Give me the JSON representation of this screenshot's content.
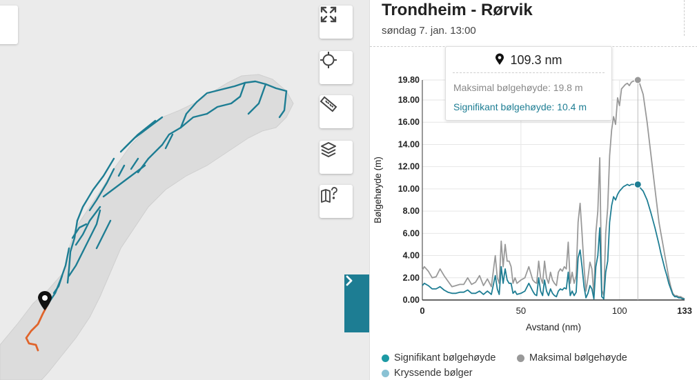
{
  "map": {
    "controls": [
      {
        "name": "fullscreen-button",
        "icon": "expand-icon"
      },
      {
        "name": "locate-button",
        "icon": "crosshair-icon"
      },
      {
        "name": "measure-button",
        "icon": "ruler-icon"
      },
      {
        "name": "layers-button",
        "icon": "layers-icon"
      },
      {
        "name": "map-help-button",
        "icon": "map-help-icon"
      }
    ],
    "colors": {
      "land": "#dcdcdc",
      "sea": "#ebebeb",
      "route_network": "#1d7d93",
      "selected_route": "#e0642b",
      "marker": "#111111"
    }
  },
  "panel": {
    "title": "Trondheim - Rørvik",
    "subtitle": "søndag 7. jan. 13:00",
    "toggle_icon": "chevron-right-icon"
  },
  "tooltip": {
    "distance": "109.3 nm",
    "max_label": "Maksimal bølgehøyde: 19.8 m",
    "sig_label": "Signifikant bølgehøyde: 10.4 m"
  },
  "chart_data": {
    "type": "line",
    "xlabel": "Avstand (nm)",
    "ylabel": "Bølgehøyde (m)",
    "xlim": [
      0,
      133
    ],
    "ylim": [
      0,
      19.8
    ],
    "x_ticks": [
      0,
      50,
      100,
      133
    ],
    "x_tick_labels": [
      "0",
      "50",
      "100",
      "133"
    ],
    "y_ticks": [
      0,
      2,
      4,
      6,
      8,
      10,
      12,
      14,
      16,
      18,
      19.8
    ],
    "y_tick_labels": [
      "0.00",
      "2.00",
      "4.00",
      "6.00",
      "8.00",
      "10.00",
      "12.00",
      "14.00",
      "16.00",
      "18.00",
      "19.80"
    ],
    "cursor_x": 109.3,
    "series": [
      {
        "name": "Maksimal bølgehøyde",
        "color": "#999999",
        "x": [
          0,
          1,
          3,
          5,
          7,
          9,
          11,
          13,
          15,
          17,
          19,
          21,
          23,
          25,
          27,
          29,
          31,
          33,
          35,
          37,
          38,
          39,
          40,
          41,
          42,
          43,
          44,
          45,
          46,
          47,
          48,
          50,
          52,
          54,
          56,
          57,
          58,
          59,
          60,
          61,
          62,
          63,
          64,
          65,
          66,
          67,
          68,
          69,
          70,
          71,
          72,
          73,
          74,
          75,
          76,
          77,
          78,
          79,
          80,
          81,
          82,
          83,
          84,
          85,
          86,
          87,
          88,
          89,
          90,
          91,
          92,
          93,
          94,
          95,
          96,
          97,
          98,
          99,
          100,
          101,
          102,
          103,
          104,
          105,
          106,
          107,
          108,
          109.3,
          110,
          112,
          114,
          116,
          118,
          120,
          121,
          122,
          123,
          124,
          125,
          126,
          127,
          128,
          129,
          130,
          131,
          132,
          133
        ],
        "y": [
          2.7,
          3.0,
          2.6,
          2.0,
          2.1,
          2.8,
          2.2,
          1.7,
          1.2,
          1.3,
          1.4,
          1.4,
          2.0,
          1.4,
          1.6,
          2.2,
          1.3,
          1.9,
          1.2,
          4.0,
          2.0,
          1.5,
          5.3,
          3.0,
          5.0,
          3.5,
          3.5,
          3.0,
          1.5,
          2.0,
          1.5,
          1.8,
          2.0,
          3.0,
          1.8,
          1.6,
          1.5,
          3.5,
          2.0,
          1.5,
          3.5,
          2.0,
          1.5,
          2.5,
          1.8,
          1.5,
          1.3,
          2.5,
          2.8,
          2.6,
          3.0,
          2.8,
          5.2,
          1.5,
          2.5,
          1.5,
          2.2,
          7.0,
          8.7,
          6.0,
          3.0,
          0.8,
          2.0,
          3.4,
          2.8,
          0.4,
          6.0,
          8.0,
          12.8,
          0.9,
          0.4,
          6.0,
          8.3,
          13.0,
          15.3,
          16.5,
          15.8,
          18.2,
          17.5,
          19.0,
          19.2,
          19.4,
          19.5,
          19.3,
          19.6,
          19.7,
          19.7,
          19.8,
          19.6,
          18.5,
          16.0,
          13.0,
          10.0,
          7.0,
          6.0,
          5.0,
          4.0,
          3.0,
          2.0,
          1.2,
          0.6,
          0.4,
          0.4,
          0.3,
          0.3,
          0.2,
          0.1
        ]
      },
      {
        "name": "Signifikant bølgehøyde",
        "color": "#1d7d93",
        "x": [
          0,
          1,
          3,
          5,
          7,
          9,
          11,
          13,
          15,
          17,
          19,
          21,
          23,
          25,
          27,
          29,
          31,
          33,
          35,
          37,
          38,
          39,
          40,
          41,
          42,
          43,
          44,
          45,
          46,
          47,
          48,
          50,
          52,
          54,
          56,
          57,
          58,
          59,
          60,
          61,
          62,
          63,
          64,
          65,
          66,
          67,
          68,
          69,
          70,
          71,
          72,
          73,
          74,
          75,
          76,
          77,
          78,
          79,
          80,
          81,
          82,
          83,
          84,
          85,
          86,
          87,
          88,
          89,
          90,
          91,
          92,
          93,
          94,
          95,
          96,
          97,
          98,
          99,
          100,
          101,
          102,
          103,
          104,
          105,
          106,
          107,
          108,
          109.3,
          110,
          112,
          114,
          116,
          118,
          120,
          121,
          122,
          123,
          124,
          125,
          126,
          127,
          128,
          129,
          130,
          131,
          132,
          133
        ],
        "y": [
          1.3,
          1.5,
          1.3,
          1.0,
          1.0,
          1.2,
          0.9,
          0.7,
          0.6,
          0.6,
          0.7,
          0.7,
          0.9,
          0.6,
          0.6,
          0.8,
          0.5,
          0.8,
          0.5,
          2.2,
          1.0,
          0.5,
          3.0,
          1.5,
          2.8,
          1.8,
          1.5,
          1.5,
          0.6,
          0.8,
          0.5,
          0.6,
          0.8,
          1.5,
          0.8,
          0.5,
          0.4,
          2.0,
          0.8,
          0.4,
          1.8,
          0.8,
          0.4,
          1.0,
          0.6,
          0.4,
          0.3,
          0.8,
          1.0,
          0.9,
          1.1,
          1.0,
          2.5,
          0.4,
          0.8,
          0.4,
          0.7,
          3.8,
          4.5,
          3.0,
          1.2,
          0.2,
          0.6,
          1.3,
          1.0,
          0.1,
          3.0,
          4.0,
          6.5,
          0.3,
          0.1,
          2.5,
          3.5,
          7.0,
          8.5,
          9.3,
          9.0,
          9.5,
          9.8,
          10.0,
          10.2,
          10.3,
          10.4,
          10.3,
          10.4,
          10.4,
          10.4,
          10.4,
          10.2,
          9.8,
          9.0,
          7.8,
          6.5,
          5.0,
          4.2,
          3.5,
          2.8,
          2.2,
          1.5,
          1.0,
          0.5,
          0.3,
          0.3,
          0.2,
          0.2,
          0.1,
          0.1
        ]
      }
    ]
  },
  "legend": [
    {
      "label": "Signifikant bølgehøyde",
      "color": "#1d9aa4"
    },
    {
      "label": "Maksimal bølgehøyde",
      "color": "#999999"
    },
    {
      "label": "Kryssende bølger",
      "color": "#8ac2d4"
    }
  ]
}
